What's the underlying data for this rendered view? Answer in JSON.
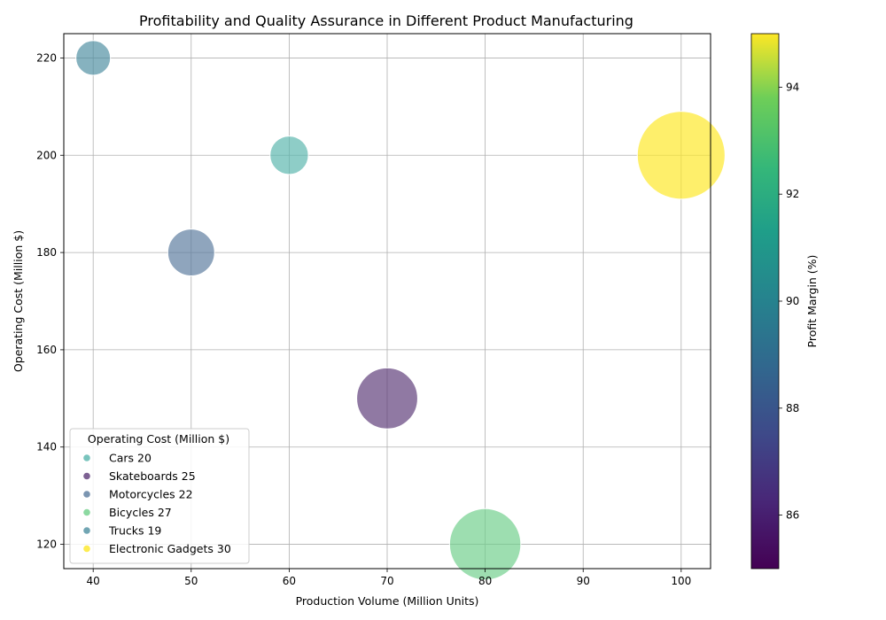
{
  "chart_data": {
    "type": "scatter",
    "title": "Profitability and Quality Assurance in Different Product Manufacturing",
    "xlabel": "Production Volume (Million Units)",
    "ylabel": "Operating Cost (Million $)",
    "xlim": [
      37,
      103
    ],
    "ylim": [
      115,
      225
    ],
    "xticks": [
      40,
      50,
      60,
      70,
      80,
      90,
      100
    ],
    "yticks": [
      120,
      140,
      160,
      180,
      200,
      220
    ],
    "grid": true,
    "points": [
      {
        "label": "Cars",
        "x": 60,
        "y": 200,
        "size_value": 20,
        "profit_margin": 90.5,
        "color": "#58b5ad"
      },
      {
        "label": "Skateboards",
        "x": 70,
        "y": 150,
        "size_value": 25,
        "profit_margin": 86.0,
        "color": "#5c3a78"
      },
      {
        "label": "Motorcycles",
        "x": 50,
        "y": 180,
        "size_value": 22,
        "profit_margin": 88.0,
        "color": "#5a7a9e"
      },
      {
        "label": "Bicycles",
        "x": 80,
        "y": 120,
        "size_value": 27,
        "profit_margin": 92.5,
        "color": "#6fcf8a"
      },
      {
        "label": "Trucks",
        "x": 40,
        "y": 220,
        "size_value": 19,
        "profit_margin": 89.5,
        "color": "#4d8ea0"
      },
      {
        "label": "Electronic Gadgets",
        "x": 100,
        "y": 200,
        "size_value": 30,
        "profit_margin": 95.0,
        "color": "#fde725"
      }
    ],
    "legend": {
      "title": "Operating Cost (Million $)",
      "placement": "lower-left",
      "entries": [
        "Cars 20",
        "Skateboards 25",
        "Motorcycles 22",
        "Bicycles 27",
        "Trucks 19",
        "Electronic Gadgets 30"
      ]
    },
    "colorbar": {
      "label": "Profit Margin (%)",
      "range": [
        85,
        95
      ],
      "ticks": [
        86,
        88,
        90,
        92,
        94
      ],
      "colormap": "viridis"
    }
  }
}
